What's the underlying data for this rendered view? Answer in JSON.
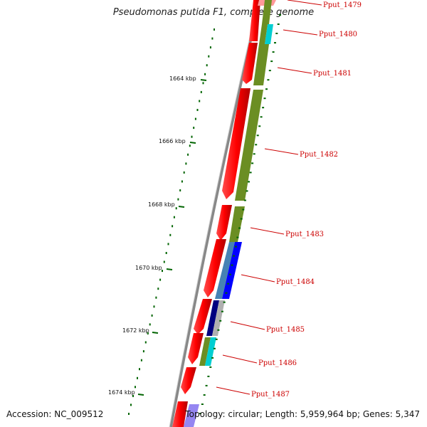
{
  "title": "Pseudomonas putida F1, complete genome",
  "accession": "Accession: NC_009512",
  "summary": "Topology: circular; Length: 5,959,964 bp; Genes: 5,347",
  "kbp_labels": [
    "1664 kbp",
    "1666 kbp",
    "1668 kbp",
    "1670 kbp",
    "1672 kbp",
    "1674 kbp"
  ],
  "genes": [
    "Pput_1479",
    "Pput_1480",
    "Pput_1481",
    "Pput_1482",
    "Pput_1483",
    "Pput_1484",
    "Pput_1485",
    "Pput_1486",
    "Pput_1487"
  ],
  "colors": {
    "cds_forward": "#ff0000",
    "olive": "#6b8e23",
    "blue": "#0000ff",
    "steelblue": "#4682b4",
    "navy": "#000080",
    "cyan": "#00ced1",
    "gray": "#b0b0b0",
    "label": "#cc0000",
    "tick": "#006400"
  }
}
